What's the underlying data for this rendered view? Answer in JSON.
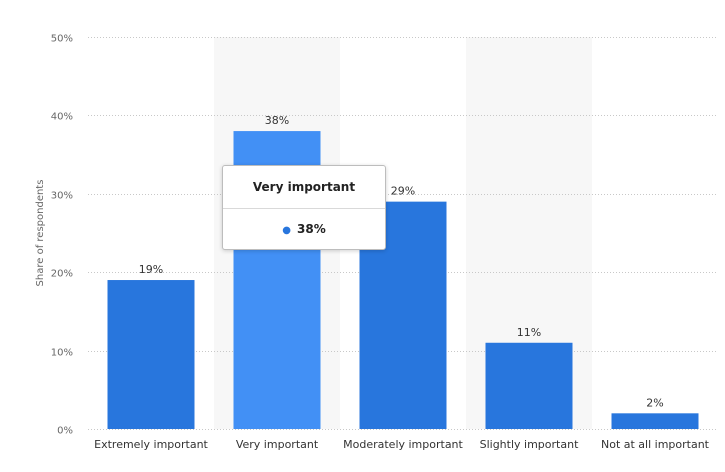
{
  "chart_data": {
    "type": "bar",
    "categories": [
      "Extremely important",
      "Very important",
      "Moderately important",
      "Slightly important",
      "Not at all important"
    ],
    "values": [
      19,
      38,
      29,
      11,
      2
    ],
    "value_labels": [
      "19%",
      "38%",
      "29%",
      "11%",
      "2%"
    ],
    "ylabel": "Share of respondents",
    "ylim": [
      0,
      50
    ],
    "yticks": [
      0,
      10,
      20,
      30,
      40,
      50
    ],
    "ytick_labels": [
      "0%",
      "10%",
      "20%",
      "30%",
      "40%",
      "50%"
    ],
    "grid": true,
    "legend": "none",
    "highlighted_index": 1,
    "colors": {
      "bar": "#2876dd",
      "bar_highlight": "#4290f5",
      "hover_band": "#f7f7f7"
    }
  },
  "tooltip": {
    "title": "Very important",
    "value": "38%"
  }
}
